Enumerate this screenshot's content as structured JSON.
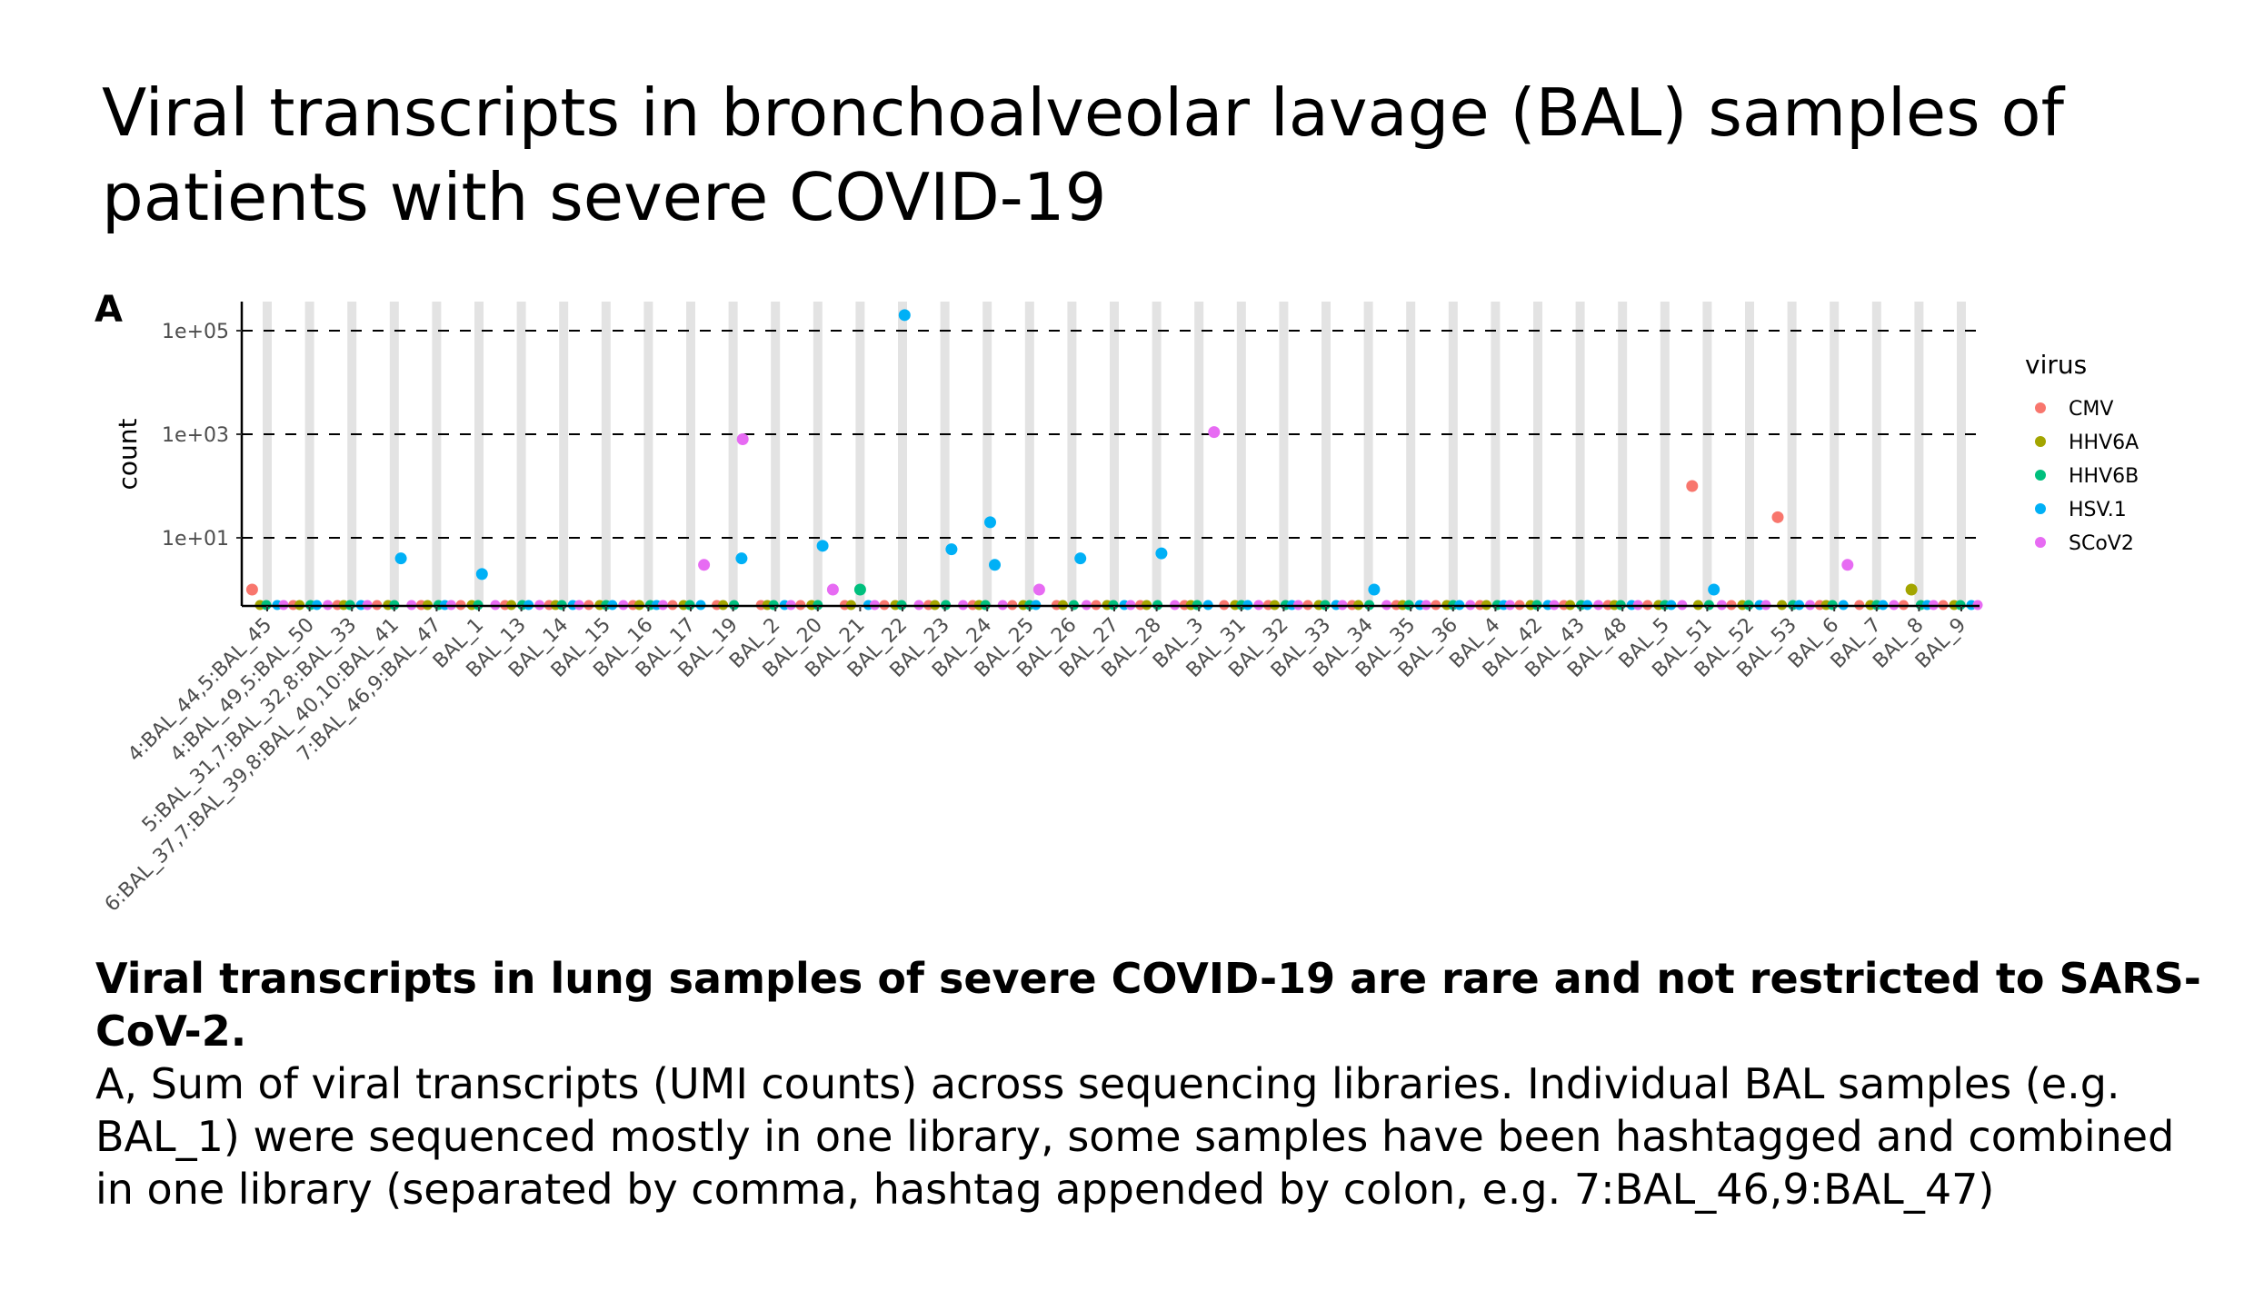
{
  "page": {
    "title": "Viral transcripts in bronchoalveolar lavage (BAL) samples of patients with severe COVID-19",
    "panel_tag": "A",
    "caption_bold": "Viral transcripts in lung samples of severe COVID-19 are rare and not restricted to SARS-CoV-2.",
    "caption_text": "A, Sum of viral transcripts (UMI counts) across sequencing libraries. Individual BAL samples (e.g. BAL_1) were sequenced mostly in one library, some samples have been hashtagged and combined in one library (separated by comma, hashtag appended by colon, e.g. 7:BAL_46,9:BAL_47)"
  },
  "colors": {
    "CMV": "#F8766D",
    "HHV6A": "#A3A500",
    "HHV6B": "#00BF7D",
    "HSV.1": "#00B0F6",
    "SCoV2": "#E76BF3",
    "stripe": "#e3e3e3"
  },
  "chart_data": {
    "type": "scatter",
    "title": "",
    "xlabel": "",
    "ylabel": "count",
    "y_scale": "log10",
    "ylim": [
      0.15,
      300000
    ],
    "y_ticks": [
      10,
      1000,
      100000
    ],
    "y_tick_labels": [
      "1e+01",
      "1e+03",
      "1e+05"
    ],
    "grid": "dashed horizontal at y ticks, grey vertical stripes per category",
    "legend": {
      "title": "virus",
      "position": "right"
    },
    "series_names": [
      "CMV",
      "HHV6A",
      "HHV6B",
      "HSV.1",
      "SCoV2"
    ],
    "categories": [
      "4:BAL_44,5:BAL_45",
      "4:BAL_49,5:BAL_50",
      "5:BAL_31,7:BAL_32,8:BAL_33",
      "6:BAL_37,7:BAL_39,8:BAL_40,10:BAL_41",
      "7:BAL_46,9:BAL_47",
      "BAL_1",
      "BAL_13",
      "BAL_14",
      "BAL_15",
      "BAL_16",
      "BAL_17",
      "BAL_19",
      "BAL_2",
      "BAL_20",
      "BAL_21",
      "BAL_22",
      "BAL_23",
      "BAL_24",
      "BAL_25",
      "BAL_26",
      "BAL_27",
      "BAL_28",
      "BAL_3",
      "BAL_31",
      "BAL_32",
      "BAL_33",
      "BAL_34",
      "BAL_35",
      "BAL_36",
      "BAL_4",
      "BAL_42",
      "BAL_43",
      "BAL_48",
      "BAL_5",
      "BAL_51",
      "BAL_52",
      "BAL_53",
      "BAL_6",
      "BAL_7",
      "BAL_8",
      "BAL_9"
    ],
    "nonzero_points": [
      {
        "category": "4:BAL_44,5:BAL_45",
        "virus": "CMV",
        "count": 1
      },
      {
        "category": "6:BAL_37,7:BAL_39,8:BAL_40,10:BAL_41",
        "virus": "HSV.1",
        "count": 4
      },
      {
        "category": "BAL_1",
        "virus": "HSV.1",
        "count": 2
      },
      {
        "category": "BAL_17",
        "virus": "SCoV2",
        "count": 3
      },
      {
        "category": "BAL_19",
        "virus": "SCoV2",
        "count": 800
      },
      {
        "category": "BAL_19",
        "virus": "HSV.1",
        "count": 4
      },
      {
        "category": "BAL_20",
        "virus": "HSV.1",
        "count": 7
      },
      {
        "category": "BAL_20",
        "virus": "SCoV2",
        "count": 1
      },
      {
        "category": "BAL_21",
        "virus": "HHV6B",
        "count": 1
      },
      {
        "category": "BAL_22",
        "virus": "HSV.1",
        "count": 200000
      },
      {
        "category": "BAL_23",
        "virus": "HSV.1",
        "count": 6
      },
      {
        "category": "BAL_24",
        "virus": "HSV.1",
        "count": 20
      },
      {
        "category": "BAL_24",
        "virus": "HSV.1",
        "count": 3
      },
      {
        "category": "BAL_25",
        "virus": "SCoV2",
        "count": 1
      },
      {
        "category": "BAL_26",
        "virus": "HSV.1",
        "count": 4
      },
      {
        "category": "BAL_28",
        "virus": "HSV.1",
        "count": 5
      },
      {
        "category": "BAL_3",
        "virus": "SCoV2",
        "count": 1100
      },
      {
        "category": "BAL_34",
        "virus": "HSV.1",
        "count": 1
      },
      {
        "category": "BAL_51",
        "virus": "CMV",
        "count": 100
      },
      {
        "category": "BAL_51",
        "virus": "HSV.1",
        "count": 1
      },
      {
        "category": "BAL_53",
        "virus": "CMV",
        "count": 25
      },
      {
        "category": "BAL_6",
        "virus": "SCoV2",
        "count": 3
      },
      {
        "category": "BAL_8",
        "virus": "HHV6A",
        "count": 1
      }
    ],
    "zero_points_note": "all remaining category/virus combinations plotted at 0 along the baseline"
  }
}
